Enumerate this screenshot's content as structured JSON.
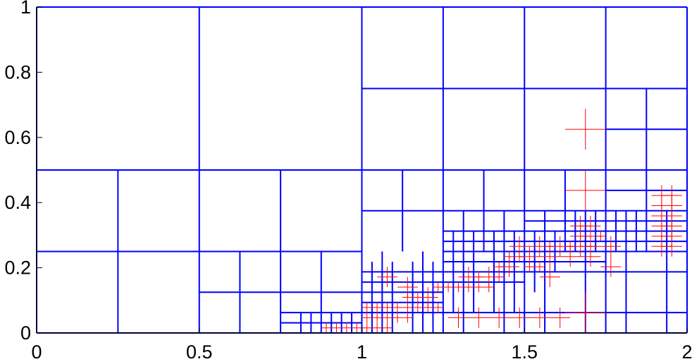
{
  "chart_data": {
    "type": "mesh",
    "xlim": [
      0,
      2
    ],
    "ylim": [
      0,
      1
    ],
    "x_ticks": [
      {
        "value": 0,
        "label": "0"
      },
      {
        "value": 0.5,
        "label": "0.5"
      },
      {
        "value": 1,
        "label": "1"
      },
      {
        "value": 1.5,
        "label": "1.5"
      },
      {
        "value": 2,
        "label": "2"
      }
    ],
    "y_ticks": [
      {
        "value": 0,
        "label": "0"
      },
      {
        "value": 0.2,
        "label": "0.2"
      },
      {
        "value": 0.4,
        "label": "0.4"
      },
      {
        "value": 0.6,
        "label": "0.6"
      },
      {
        "value": 0.8,
        "label": "0.8"
      },
      {
        "value": 1,
        "label": "1"
      }
    ],
    "colors": {
      "mesh": "#0000ff",
      "refinement_marks": "#ff0000",
      "axes": "#000000"
    },
    "grid": false,
    "mesh_segments": [
      [
        0,
        1,
        2,
        1
      ],
      [
        0,
        0,
        0,
        1
      ],
      [
        0,
        0,
        2,
        0
      ],
      [
        2,
        0,
        2,
        1
      ],
      [
        0,
        0.5,
        2,
        0.5
      ],
      [
        0,
        0.25,
        1,
        0.25
      ],
      [
        1,
        0.75,
        2,
        0.75
      ],
      [
        0.5,
        0,
        0.5,
        1
      ],
      [
        1,
        0,
        1,
        1
      ],
      [
        1.5,
        0,
        1.5,
        1
      ],
      [
        0.25,
        0,
        0.25,
        0.5
      ],
      [
        0.75,
        0,
        0.75,
        0.5
      ],
      [
        1.25,
        0.25,
        1.25,
        1
      ],
      [
        1.75,
        0.25,
        1.75,
        1
      ],
      [
        0.5,
        0.125,
        1,
        0.125
      ],
      [
        1,
        0.375,
        2,
        0.375
      ],
      [
        1.75,
        0.625,
        2,
        0.625
      ],
      [
        0.625,
        0,
        0.625,
        0.25
      ],
      [
        0.875,
        0,
        0.875,
        0.25
      ],
      [
        1.125,
        0.25,
        1.125,
        0.5
      ],
      [
        1.375,
        0.25,
        1.375,
        0.5
      ],
      [
        1.875,
        0.5,
        1.875,
        0.75
      ],
      [
        1,
        0.1875,
        2,
        0.1875
      ],
      [
        1.25,
        0.3125,
        2,
        0.3125
      ],
      [
        1,
        0.125,
        1.25,
        0.125
      ],
      [
        1.25,
        0.25,
        2,
        0.25
      ],
      [
        0.75,
        0.0625,
        2,
        0.0625
      ],
      [
        1.75,
        0.4375,
        2,
        0.4375
      ],
      [
        1.25,
        0,
        1.25,
        0.25
      ],
      [
        1.75,
        0,
        1.75,
        0.25
      ],
      [
        1.625,
        0.25,
        1.625,
        0.5
      ],
      [
        1.875,
        0.25,
        1.875,
        0.5
      ],
      [
        1.0625,
        0,
        1.0625,
        0.25
      ],
      [
        1.1875,
        0,
        1.1875,
        0.25
      ],
      [
        1.3125,
        0,
        1.3125,
        0.375
      ],
      [
        1.4375,
        0,
        1.4375,
        0.375
      ],
      [
        1.5625,
        0,
        1.5625,
        0.375
      ],
      [
        1.6875,
        0,
        1.6875,
        0.375
      ],
      [
        1.8125,
        0,
        1.8125,
        0.375
      ],
      [
        1.9375,
        0,
        1.9375,
        0.375
      ],
      [
        0.8125,
        0,
        0.8125,
        0.0625
      ],
      [
        0.9375,
        0,
        0.9375,
        0.0625
      ],
      [
        1,
        0.09375,
        1.25,
        0.09375
      ],
      [
        1,
        0.15625,
        1.5,
        0.15625
      ],
      [
        1.25,
        0.21875,
        1.75,
        0.21875
      ],
      [
        1.25,
        0.28125,
        2,
        0.28125
      ],
      [
        1.5,
        0.34375,
        2,
        0.34375
      ],
      [
        1.03125,
        0,
        1.03125,
        0.21875
      ],
      [
        1.09375,
        0,
        1.09375,
        0.21875
      ],
      [
        1.15625,
        0,
        1.15625,
        0.21875
      ],
      [
        1.21875,
        0,
        1.21875,
        0.21875
      ],
      [
        1.28125,
        0.0625,
        1.28125,
        0.3125
      ],
      [
        1.34375,
        0.0625,
        1.34375,
        0.3125
      ],
      [
        1.40625,
        0.0625,
        1.40625,
        0.3125
      ],
      [
        1.46875,
        0.0625,
        1.46875,
        0.3125
      ],
      [
        1.53125,
        0.125,
        1.53125,
        0.3125
      ],
      [
        1.59375,
        0.1875,
        1.59375,
        0.3125
      ],
      [
        1.65625,
        0.25,
        1.65625,
        0.375
      ],
      [
        1.71875,
        0.25,
        1.71875,
        0.375
      ],
      [
        1.78125,
        0.25,
        1.78125,
        0.375
      ],
      [
        1.84375,
        0.25,
        1.84375,
        0.375
      ],
      [
        0.75,
        0.03125,
        1.0,
        0.03125
      ],
      [
        0.84375,
        0,
        0.84375,
        0.0625
      ],
      [
        0.90625,
        0,
        0.90625,
        0.0625
      ],
      [
        0.96875,
        0,
        0.96875,
        0.0625
      ]
    ],
    "refinement_marks": [
      [
        1.6875,
        0.625,
        0.0625
      ],
      [
        1.6875,
        0.0625,
        0.0625
      ],
      [
        1.6875,
        0.4375,
        0.0625
      ],
      [
        1.921875,
        0.421875,
        0.03125
      ],
      [
        1.953125,
        0.421875,
        0.03125
      ],
      [
        1.921875,
        0.390625,
        0.03125
      ],
      [
        1.953125,
        0.390625,
        0.03125
      ],
      [
        1.921875,
        0.359375,
        0.03125
      ],
      [
        1.953125,
        0.359375,
        0.03125
      ],
      [
        1.921875,
        0.328125,
        0.03125
      ],
      [
        1.953125,
        0.328125,
        0.03125
      ],
      [
        1.921875,
        0.296875,
        0.03125
      ],
      [
        1.953125,
        0.296875,
        0.03125
      ],
      [
        1.921875,
        0.265625,
        0.03125
      ],
      [
        1.953125,
        0.265625,
        0.03125
      ],
      [
        1.765625,
        0.203125,
        0.03125
      ],
      [
        1.765625,
        0.265625,
        0.03125
      ],
      [
        1.578125,
        0.171875,
        0.03125
      ],
      [
        1.671875,
        0.328125,
        0.03125
      ],
      [
        1.703125,
        0.328125,
        0.03125
      ],
      [
        1.671875,
        0.296875,
        0.03125
      ],
      [
        1.703125,
        0.296875,
        0.03125
      ],
      [
        1.671875,
        0.265625,
        0.03125
      ],
      [
        1.703125,
        0.265625,
        0.03125
      ],
      [
        1.078125,
        0.171875,
        0.03125
      ],
      [
        1.140625,
        0.140625,
        0.03125
      ],
      [
        1.203125,
        0.109375,
        0.03125
      ],
      [
        1.328125,
        0.171875,
        0.03125
      ],
      [
        1.390625,
        0.171875,
        0.03125
      ],
      [
        1.296875,
        0.046875,
        0.03125
      ],
      [
        1.359375,
        0.046875,
        0.03125
      ],
      [
        1.421875,
        0.046875,
        0.03125
      ],
      [
        1.484875,
        0.046875,
        0.03125
      ],
      [
        1.546875,
        0.046875,
        0.03125
      ],
      [
        1.609375,
        0.046875,
        0.03125
      ],
      [
        1.453125,
        0.203125,
        0.03125
      ],
      [
        1.515625,
        0.234375,
        0.03125
      ],
      [
        1.578125,
        0.234375,
        0.03125
      ],
      [
        1.640625,
        0.234375,
        0.03125
      ],
      [
        1.703125,
        0.234375,
        0.03125
      ],
      [
        1.484375,
        0.265625,
        0.03125
      ],
      [
        1.546375,
        0.265625,
        0.03125
      ],
      [
        1.609375,
        0.265625,
        0.03125
      ],
      [
        1.015625,
        0.078125,
        0.015625
      ],
      [
        1.046875,
        0.078125,
        0.015625
      ],
      [
        1.078125,
        0.078125,
        0.015625
      ],
      [
        1.109375,
        0.078125,
        0.015625
      ],
      [
        1.140625,
        0.078125,
        0.015625
      ],
      [
        1.171875,
        0.078125,
        0.015625
      ],
      [
        1.203125,
        0.078125,
        0.015625
      ],
      [
        1.234375,
        0.078125,
        0.015625
      ],
      [
        1.015625,
        0.046875,
        0.015625
      ],
      [
        1.046875,
        0.046875,
        0.015625
      ],
      [
        1.078125,
        0.046875,
        0.015625
      ],
      [
        1.109375,
        0.046875,
        0.015625
      ],
      [
        1.140625,
        0.046875,
        0.015625
      ],
      [
        1.015625,
        0.015625,
        0.015625
      ],
      [
        1.046875,
        0.015625,
        0.015625
      ],
      [
        1.078125,
        0.015625,
        0.015625
      ],
      [
        1.140625,
        0.109375,
        0.015625
      ],
      [
        1.171875,
        0.109375,
        0.015625
      ],
      [
        1.234375,
        0.140625,
        0.015625
      ],
      [
        1.265625,
        0.140625,
        0.015625
      ],
      [
        1.296875,
        0.140625,
        0.015625
      ],
      [
        1.328125,
        0.140625,
        0.015625
      ],
      [
        1.359375,
        0.140625,
        0.015625
      ],
      [
        1.390625,
        0.140625,
        0.015625
      ],
      [
        1.359375,
        0.171875,
        0.015625
      ],
      [
        1.421875,
        0.171875,
        0.015625
      ],
      [
        1.421875,
        0.203125,
        0.015625
      ],
      [
        1.453125,
        0.234375,
        0.015625
      ],
      [
        1.484375,
        0.234375,
        0.015625
      ],
      [
        1.515625,
        0.203125,
        0.015625
      ],
      [
        1.546875,
        0.203125,
        0.015625
      ],
      [
        1.578125,
        0.265625,
        0.015625
      ],
      [
        1.640625,
        0.265625,
        0.015625
      ],
      [
        1.703125,
        0.265625,
        0.015625
      ],
      [
        1.734375,
        0.296875,
        0.015625
      ],
      [
        0.890625,
        0.015625,
        0.015625
      ],
      [
        0.921875,
        0.015625,
        0.015625
      ],
      [
        0.953125,
        0.015625,
        0.015625
      ],
      [
        0.984375,
        0.015625,
        0.015625
      ]
    ]
  }
}
